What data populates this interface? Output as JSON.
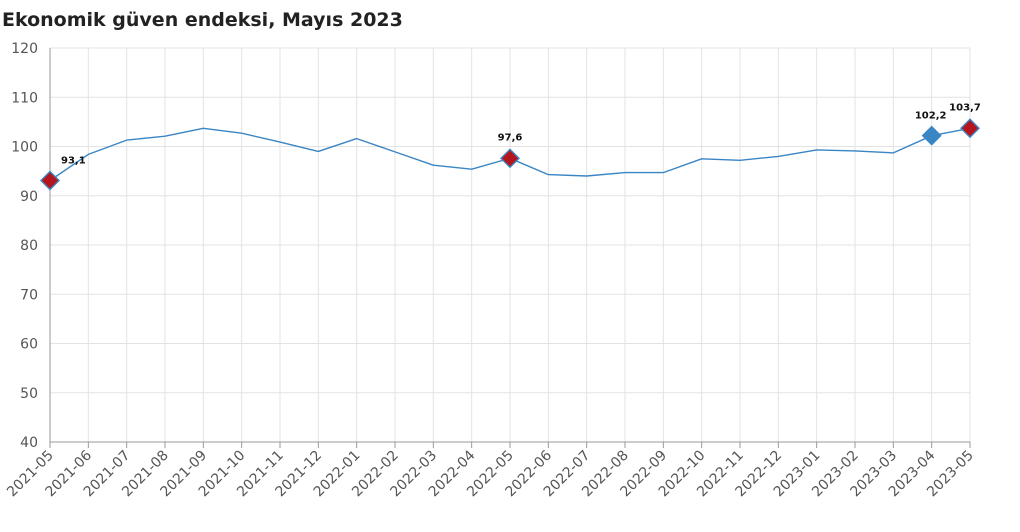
{
  "chart_data": {
    "type": "line",
    "title": "Ekonomik güven endeksi, Mayıs 2023",
    "xlabel": "",
    "ylabel": "",
    "ylim": [
      40,
      120
    ],
    "yticks": [
      40,
      50,
      60,
      70,
      80,
      90,
      100,
      110,
      120
    ],
    "grid": true,
    "legend": "none",
    "categories": [
      "2021-05",
      "2021-06",
      "2021-07",
      "2021-08",
      "2021-09",
      "2021-10",
      "2021-11",
      "2021-12",
      "2022-01",
      "2022-02",
      "2022-03",
      "2022-04",
      "2022-05",
      "2022-06",
      "2022-07",
      "2022-08",
      "2022-09",
      "2022-10",
      "2022-11",
      "2022-12",
      "2023-01",
      "2023-02",
      "2023-03",
      "2023-04",
      "2023-05"
    ],
    "series": [
      {
        "values": [
          93.1,
          98.4,
          101.3,
          102.1,
          103.7,
          102.7,
          100.9,
          99.0,
          101.6,
          98.9,
          96.2,
          95.4,
          97.6,
          94.3,
          94.0,
          94.7,
          94.7,
          97.5,
          97.2,
          98.0,
          99.3,
          99.1,
          98.7,
          102.2,
          103.7
        ]
      }
    ],
    "line_color": "#3a85c4",
    "markers": [
      {
        "category": "2021-05",
        "value": 93.1,
        "label": "93,1",
        "color": "#b5161e"
      },
      {
        "category": "2022-05",
        "value": 97.6,
        "label": "97,6",
        "color": "#b5161e"
      },
      {
        "category": "2023-04",
        "value": 102.2,
        "label": "102,2",
        "color": "#3a85c4"
      },
      {
        "category": "2023-05",
        "value": 103.7,
        "label": "103,7",
        "color": "#b5161e"
      }
    ]
  }
}
